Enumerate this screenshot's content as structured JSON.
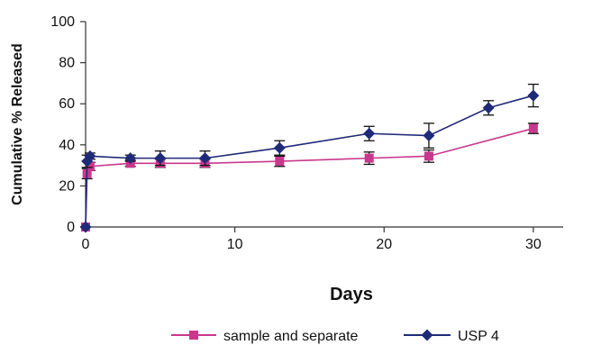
{
  "chart_data": {
    "type": "line",
    "xlabel": "Days",
    "ylabel": "Cumulative % Released",
    "xlim": [
      0,
      32
    ],
    "ylim": [
      0,
      100
    ],
    "x_ticks": [
      "0",
      "10",
      "20",
      "30"
    ],
    "y_ticks": [
      "0",
      "20",
      "40",
      "60",
      "80",
      "100"
    ],
    "grid": false,
    "legend_position": "bottom-center",
    "series": [
      {
        "name": "sample and separate",
        "color": "#c8388c",
        "marker": "square",
        "x": [
          0,
          0.1,
          0.3,
          3,
          5,
          8,
          13,
          19,
          23,
          30
        ],
        "y": [
          0,
          26,
          29.5,
          31,
          31,
          31,
          32,
          33.5,
          34.5,
          48
        ],
        "error": [
          0,
          2.5,
          2,
          1.5,
          2,
          2,
          2.5,
          3,
          3,
          2.5
        ]
      },
      {
        "name": "USP 4",
        "color": "#1f2a78",
        "marker": "diamond",
        "x": [
          0,
          0.1,
          0.3,
          3,
          5,
          8,
          13,
          19,
          23,
          30
        ],
        "y": [
          0,
          32,
          34.5,
          33.5,
          33.5,
          33.5,
          38.5,
          45.5,
          44.5,
          64
        ],
        "error": [
          0,
          3,
          1.5,
          1.5,
          3.5,
          3.5,
          3.5,
          3.5,
          6,
          5.5
        ]
      }
    ],
    "extra_points": [
      {
        "series": "USP 4",
        "x": 27,
        "y": 58,
        "error": 3.5
      }
    ]
  }
}
